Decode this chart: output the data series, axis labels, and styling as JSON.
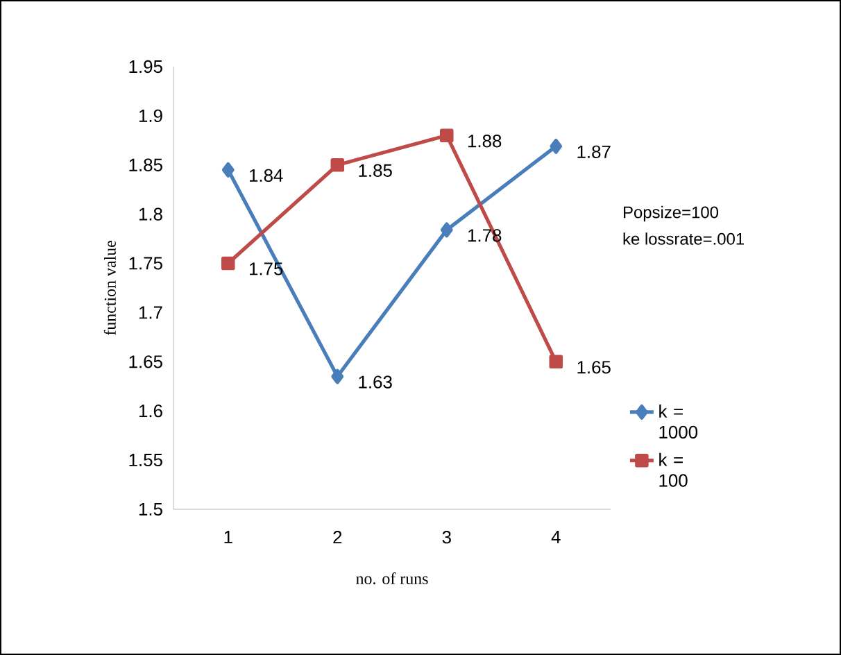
{
  "chart_data": {
    "type": "line",
    "xlabel": "no. of runs",
    "ylabel": "function value",
    "categories": [
      "1",
      "2",
      "3",
      "4"
    ],
    "series": [
      {
        "name": "k = 1000",
        "color": "#4a7ebb",
        "marker": "diamond",
        "values": [
          1.845,
          1.635,
          1.784,
          1.869
        ],
        "value_labels": [
          "1.84",
          "1.63",
          "1.78",
          "1.87"
        ]
      },
      {
        "name": "k = 100",
        "color": "#be4b48",
        "marker": "square",
        "values": [
          1.75,
          1.85,
          1.88,
          1.65
        ],
        "value_labels": [
          "1.75",
          "1.85",
          "1.88",
          "1.65"
        ]
      }
    ],
    "ylim": [
      1.5,
      1.95
    ],
    "yticks": [
      1.5,
      1.55,
      1.6,
      1.65,
      1.7,
      1.75,
      1.8,
      1.85,
      1.9,
      1.95
    ],
    "grid": false,
    "legend": "right",
    "annotations": [
      "Popsize=100",
      "ke lossrate=.001"
    ]
  }
}
